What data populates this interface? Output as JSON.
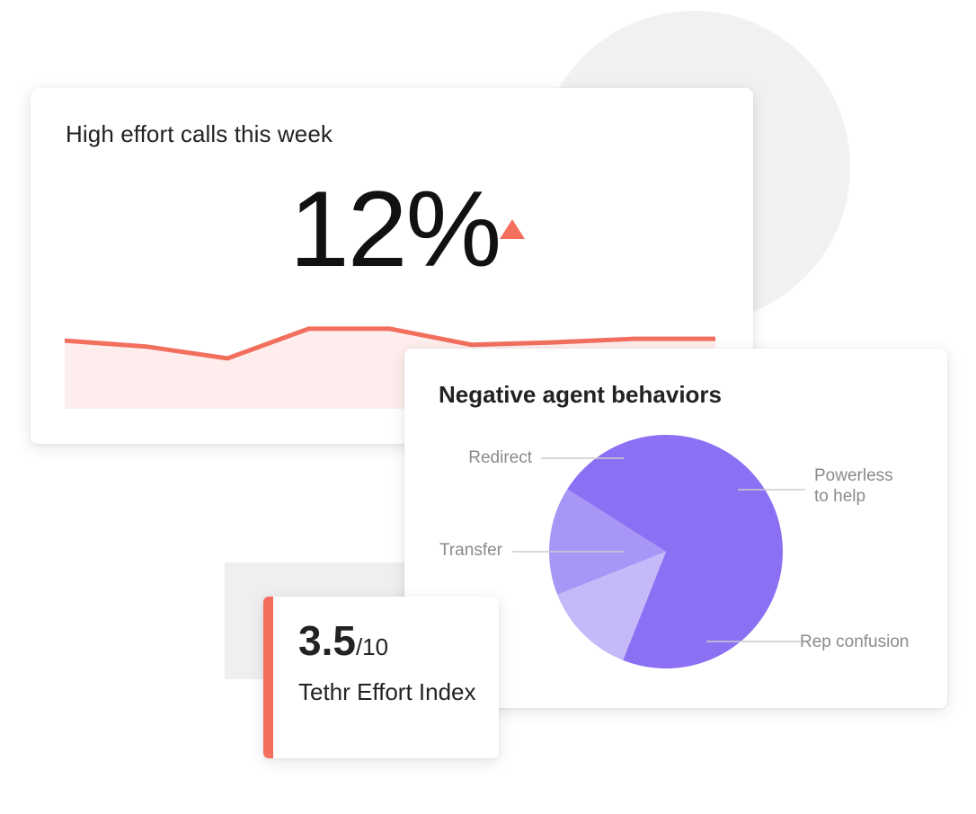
{
  "colors": {
    "accent": "#f26f5e",
    "area_fill": "#fdeeed",
    "pie_dark": "#8b70f4",
    "pie_mid": "#a896f6",
    "pie_light": "#c5b9fa",
    "leader_line": "#cccccc"
  },
  "effort_card": {
    "title": "High effort calls this week",
    "value": "12%",
    "trend_icon": "triangle-up-icon"
  },
  "index_card": {
    "value": "3.5",
    "max": "/10",
    "label": "Tethr Effort Index"
  },
  "behaviors_card": {
    "title": "Negative agent behaviors"
  },
  "chart_data": [
    {
      "type": "area",
      "title": "",
      "x": [
        1,
        2,
        3,
        4,
        5,
        6,
        7,
        8,
        9
      ],
      "series": [
        {
          "values": [
            11.5,
            10.5,
            8.5,
            13.5,
            13.5,
            10.8,
            11.2,
            11.8,
            11.8
          ]
        }
      ],
      "ylim": [
        0,
        20
      ],
      "grid": false,
      "axes_visible": false
    },
    {
      "type": "pie",
      "title": "",
      "categories": [
        "Rep confusion",
        "Transfer",
        "Redirect",
        "Powerless to help"
      ],
      "values": [
        56,
        13,
        15,
        16
      ],
      "colors": [
        "#8b70f4",
        "#c5b9fa",
        "#a896f6",
        "#8b70f4"
      ],
      "start_angle_deg": 0,
      "direction": "clockwise"
    }
  ]
}
